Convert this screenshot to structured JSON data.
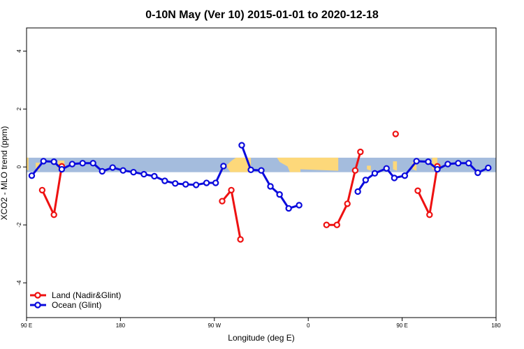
{
  "colors": {
    "land": "#ee1111",
    "ocean": "#0a0adc",
    "band_ocean": "#a4bcdd",
    "band_land": "#fdd87a",
    "axis": "#000000"
  },
  "chart_data": {
    "type": "line",
    "title": "0-10N May (Ver 10)   2015-01-01 to 2020-12-18",
    "xlabel": "Longitude (deg E)",
    "ylabel": "XCO2 - MLO trend (ppm)",
    "xlim": [
      90,
      450
    ],
    "ylim": [
      -5.2,
      4.8
    ],
    "xticks": [
      {
        "value": 90,
        "label": "90 E"
      },
      {
        "value": 162,
        "label": "180"
      },
      {
        "value": 234,
        "label": "90 W"
      },
      {
        "value": 306,
        "label": "0"
      },
      {
        "value": 378,
        "label": "90 E"
      },
      {
        "value": 450,
        "label": "180"
      }
    ],
    "yticks": [
      {
        "value": -4,
        "label": "-4"
      },
      {
        "value": -2,
        "label": "-2"
      },
      {
        "value": 0,
        "label": "0"
      },
      {
        "value": 2,
        "label": "2"
      },
      {
        "value": 4,
        "label": "4"
      }
    ],
    "band": {
      "ymin": -0.18,
      "ymax": 0.32
    },
    "legend_position": "bottom-left",
    "series": [
      {
        "name": "Land (Nadir&Glint)",
        "color": "#ee1111",
        "segments": [
          [
            [
              102,
              -0.8
            ],
            [
              111,
              -1.65
            ],
            [
              117,
              0.02
            ]
          ],
          [
            [
              240,
              -1.18
            ],
            [
              247,
              -0.8
            ],
            [
              254,
              -2.5
            ]
          ],
          [
            [
              320,
              -2.0
            ],
            [
              328,
              -2.0
            ],
            [
              336,
              -1.27
            ],
            [
              342,
              -0.12
            ],
            [
              346,
              0.52
            ]
          ],
          [
            [
              373,
              1.14
            ]
          ],
          [
            [
              390,
              -0.82
            ],
            [
              399,
              -1.65
            ],
            [
              405,
              0.02
            ]
          ]
        ]
      },
      {
        "name": "Ocean (Glint)",
        "color": "#0a0adc",
        "segments": [
          [
            [
              94,
              -0.3
            ],
            [
              103,
              0.2
            ],
            [
              111,
              0.18
            ],
            [
              117,
              -0.08
            ],
            [
              125,
              0.1
            ],
            [
              133,
              0.13
            ],
            [
              141,
              0.13
            ],
            [
              148,
              -0.15
            ],
            [
              156,
              -0.02
            ],
            [
              164,
              -0.12
            ],
            [
              172,
              -0.18
            ],
            [
              180,
              -0.25
            ],
            [
              188,
              -0.32
            ],
            [
              196,
              -0.48
            ],
            [
              204,
              -0.57
            ],
            [
              212,
              -0.6
            ],
            [
              220,
              -0.62
            ],
            [
              228,
              -0.55
            ],
            [
              235,
              -0.55
            ],
            [
              241,
              0.03
            ]
          ],
          [
            [
              255,
              0.75
            ],
            [
              262,
              -0.1
            ],
            [
              270,
              -0.12
            ],
            [
              277,
              -0.67
            ],
            [
              284,
              -0.95
            ],
            [
              291,
              -1.43
            ],
            [
              299,
              -1.32
            ]
          ],
          [
            [
              344,
              -0.85
            ],
            [
              350,
              -0.45
            ],
            [
              357,
              -0.22
            ],
            [
              366,
              -0.05
            ],
            [
              372,
              -0.38
            ],
            [
              380,
              -0.3
            ],
            [
              389,
              0.2
            ],
            [
              398,
              0.18
            ],
            [
              405,
              -0.08
            ],
            [
              413,
              0.1
            ],
            [
              421,
              0.13
            ],
            [
              429,
              0.13
            ],
            [
              436,
              -0.2
            ],
            [
              444,
              -0.03
            ]
          ]
        ]
      }
    ]
  }
}
